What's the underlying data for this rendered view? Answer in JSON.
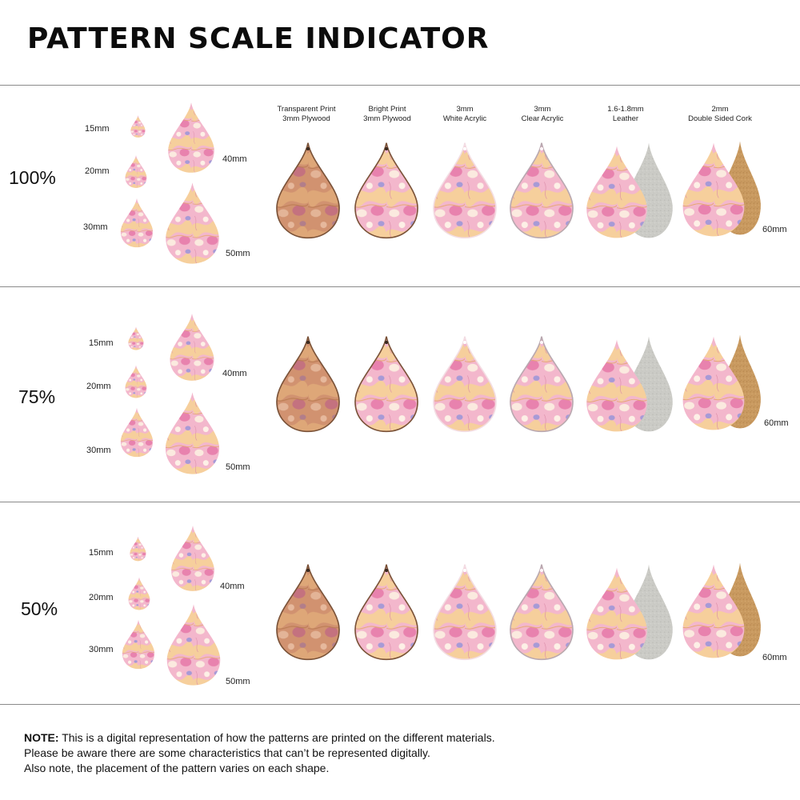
{
  "title": "PATTERN SCALE INDICATOR",
  "colors": {
    "ink": "#0c0c0c",
    "rule": "#8a8a8a",
    "pink": "#f0a8c4",
    "peach": "#f4c490",
    "lavender": "#9a8ccc",
    "plywood": "#c98c64",
    "leather_back": "#c9c9c4",
    "cork": "#c99a60"
  },
  "materials": [
    {
      "line1": "Transparent Print",
      "line2": "3mm Plywood"
    },
    {
      "line1": "Bright Print",
      "line2": "3mm Plywood"
    },
    {
      "line1": "3mm",
      "line2": "White Acrylic"
    },
    {
      "line1": "3mm",
      "line2": "Clear Acrylic"
    },
    {
      "line1": "1.6-1.8mm",
      "line2": "Leather"
    },
    {
      "line1": "2mm",
      "line2": "Double Sided Cork"
    }
  ],
  "rows": [
    {
      "scale": "100%",
      "sizes": [
        "15mm",
        "20mm",
        "30mm",
        "40mm",
        "50mm"
      ],
      "large_size": "60mm"
    },
    {
      "scale": "75%",
      "sizes": [
        "15mm",
        "20mm",
        "30mm",
        "40mm",
        "50mm"
      ],
      "large_size": "60mm"
    },
    {
      "scale": "50%",
      "sizes": [
        "15mm",
        "20mm",
        "30mm",
        "40mm",
        "50mm"
      ],
      "large_size": "60mm"
    }
  ],
  "note": {
    "lead": "NOTE:",
    "line1": " This is a digital representation of how the patterns are printed on the different materials.",
    "line2": "Please be aware there are some characteristics that can’t be represented digitally.",
    "line3": "Also note, the placement of the pattern varies on each shape."
  }
}
